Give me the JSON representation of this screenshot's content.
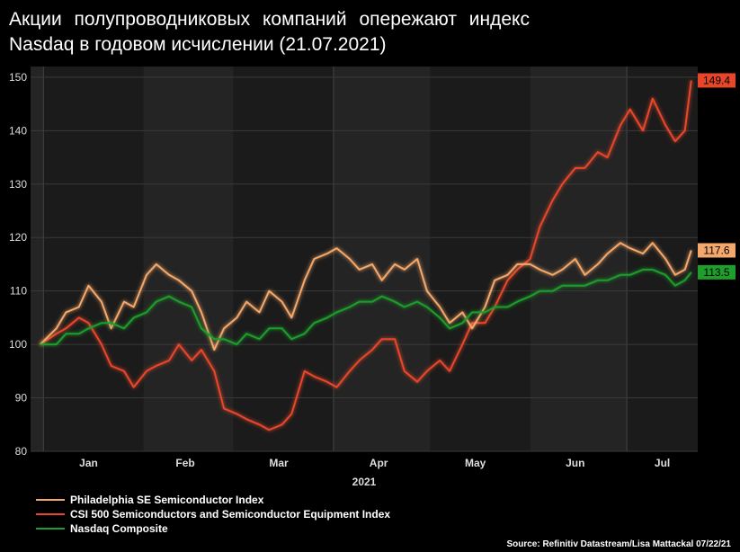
{
  "title": {
    "line1": "Акции полупроводниковых компаний опережают индекс",
    "line2": "Nasdaq в годовом исчислении (21.07.2021)"
  },
  "source": "Source: Refinitiv Datastream/Lisa Mattackal 07/22/21",
  "chart_data": {
    "type": "line",
    "title": "Акции полупроводниковых компаний опережают индекс Nasdaq в годовом исчислении (21.07.2021)",
    "xlabel": "2021",
    "ylabel": "",
    "x_tick_labels": [
      "Jan",
      "Feb",
      "Mar",
      "Apr",
      "May",
      "Jun",
      "Jul"
    ],
    "y_ticks": [
      80,
      90,
      100,
      110,
      120,
      130,
      140,
      150
    ],
    "ylim": [
      80,
      152
    ],
    "x": [
      "2020-12-31",
      "2021-01-05",
      "2021-01-08",
      "2021-01-12",
      "2021-01-15",
      "2021-01-19",
      "2021-01-22",
      "2021-01-26",
      "2021-01-29",
      "2021-02-02",
      "2021-02-05",
      "2021-02-09",
      "2021-02-12",
      "2021-02-16",
      "2021-02-19",
      "2021-02-23",
      "2021-02-26",
      "2021-03-02",
      "2021-03-05",
      "2021-03-09",
      "2021-03-12",
      "2021-03-16",
      "2021-03-19",
      "2021-03-23",
      "2021-03-26",
      "2021-03-30",
      "2021-04-02",
      "2021-04-06",
      "2021-04-09",
      "2021-04-13",
      "2021-04-16",
      "2021-04-20",
      "2021-04-23",
      "2021-04-27",
      "2021-04-30",
      "2021-05-04",
      "2021-05-07",
      "2021-05-11",
      "2021-05-14",
      "2021-05-18",
      "2021-05-21",
      "2021-05-25",
      "2021-05-28",
      "2021-06-01",
      "2021-06-04",
      "2021-06-08",
      "2021-06-11",
      "2021-06-15",
      "2021-06-18",
      "2021-06-22",
      "2021-06-25",
      "2021-06-29",
      "2021-07-02",
      "2021-07-06",
      "2021-07-09",
      "2021-07-13",
      "2021-07-16",
      "2021-07-19",
      "2021-07-21"
    ],
    "series": [
      {
        "name": "Philadelphia SE Semiconductor Index",
        "color": "#f5a86b",
        "end_label": "117.6",
        "values": [
          100,
          103,
          106,
          107,
          111,
          108,
          103,
          108,
          107,
          113,
          115,
          113,
          112,
          110,
          106,
          99,
          103,
          105,
          108,
          106,
          110,
          108,
          105,
          112,
          116,
          117,
          118,
          116,
          114,
          115,
          112,
          115,
          114,
          116,
          110,
          107,
          104,
          106,
          103,
          107,
          112,
          113,
          115,
          115,
          114,
          113,
          114,
          116,
          113,
          115,
          117,
          119,
          118,
          117,
          119,
          116,
          113,
          114,
          117.6
        ]
      },
      {
        "name": "CSI 500 Semiconductors and Semiconductor Equipment Index",
        "color": "#e8462a",
        "end_label": "149.4",
        "values": [
          100,
          102,
          103,
          105,
          104,
          100,
          96,
          95,
          92,
          95,
          96,
          97,
          100,
          97,
          99,
          95,
          88,
          87,
          86,
          85,
          84,
          85,
          87,
          95,
          94,
          93,
          92,
          95,
          97,
          99,
          101,
          101,
          95,
          93,
          95,
          97,
          95,
          100,
          104,
          104,
          107,
          112,
          114,
          116,
          122,
          127,
          130,
          133,
          133,
          136,
          135,
          141,
          144,
          140,
          146,
          141,
          138,
          140,
          149.4
        ]
      },
      {
        "name": "Nasdaq Composite",
        "color": "#1f9e2c",
        "end_label": "113.5",
        "values": [
          100,
          100,
          102,
          102,
          103,
          104,
          104,
          103,
          105,
          106,
          108,
          109,
          108,
          107,
          103,
          101,
          101,
          100,
          102,
          101,
          103,
          103,
          101,
          102,
          104,
          105,
          106,
          107,
          108,
          108,
          109,
          108,
          107,
          108,
          107,
          105,
          103,
          104,
          106,
          106,
          107,
          107,
          108,
          109,
          110,
          110,
          111,
          111,
          111,
          112,
          112,
          113,
          113,
          114,
          114,
          113,
          111,
          112,
          113.5
        ]
      }
    ]
  }
}
